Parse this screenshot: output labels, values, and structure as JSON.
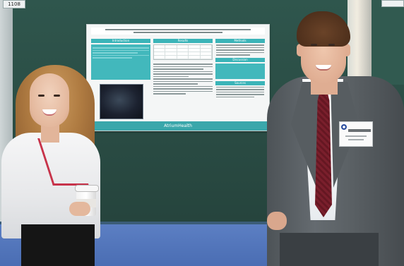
{
  "photo": {
    "kind": "poster-presentation-photo",
    "colors": {
      "board": "#2e5048",
      "poster_accent": "#3bb4b8",
      "carpet": "#5c7fc3",
      "suit": "#5b6165",
      "tie": "#7a1f2c"
    }
  },
  "top_left_tag": "1108",
  "poster": {
    "headings": {
      "col1": "Introduction",
      "col2": "Results",
      "col3a": "Methods",
      "col3b": "Discussion",
      "col3c": "Sources"
    },
    "footer_text": "AtriumHealth"
  }
}
